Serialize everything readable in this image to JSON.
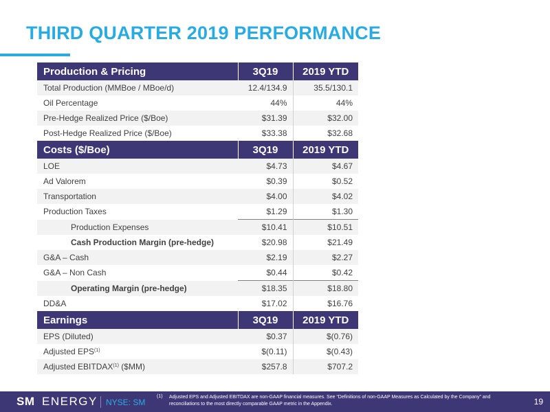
{
  "title": "THIRD QUARTER 2019 PERFORMANCE",
  "sections": {
    "production": {
      "header": "Production & Pricing",
      "col1": "3Q19",
      "col2": "2019 YTD",
      "rows": [
        {
          "label": "Total Production (MMBoe / MBoe/d)",
          "q": "12.4/134.9",
          "ytd": "35.5/130.1"
        },
        {
          "label": "Oil Percentage",
          "q": "44%",
          "ytd": "44%"
        },
        {
          "label": "Pre-Hedge Realized Price ($/Boe)",
          "q": "$31.39",
          "ytd": "$32.00"
        },
        {
          "label": "Post-Hedge Realized Price ($/Boe)",
          "q": "$33.38",
          "ytd": "$32.68"
        }
      ]
    },
    "costs": {
      "header": "Costs ($/Boe)",
      "col1": "3Q19",
      "col2": "2019 YTD",
      "rows": [
        {
          "label": "LOE",
          "q": "$4.73",
          "ytd": "$4.67"
        },
        {
          "label": "Ad Valorem",
          "q": "$0.39",
          "ytd": "$0.52"
        },
        {
          "label": "Transportation",
          "q": "$4.00",
          "ytd": "$4.02"
        },
        {
          "label": "Production Taxes",
          "q": "$1.29",
          "ytd": "$1.30"
        },
        {
          "label": "Production Expenses",
          "q": "$10.41",
          "ytd": "$10.51"
        },
        {
          "label": "Cash Production Margin (pre-hedge)",
          "q": "$20.98",
          "ytd": "$21.49"
        },
        {
          "label": "G&A – Cash",
          "q": "$2.19",
          "ytd": "$2.27"
        },
        {
          "label": "G&A – Non Cash",
          "q": "$0.44",
          "ytd": "$0.42"
        },
        {
          "label": "Operating Margin (pre-hedge)",
          "q": "$18.35",
          "ytd": "$18.80"
        },
        {
          "label": "DD&A",
          "q": "$17.02",
          "ytd": "$16.76"
        }
      ]
    },
    "earnings": {
      "header": "Earnings",
      "col1": "3Q19",
      "col2": "2019 YTD",
      "rows": [
        {
          "label": "EPS (Diluted)",
          "q": "$0.37",
          "ytd": "$(0.76)"
        },
        {
          "label": "Adjusted EPS",
          "sup": "(1)",
          "q": "$(0.11)",
          "ytd": "$(0.43)"
        },
        {
          "label": "Adjusted EBITDAX",
          "sup": "(1)",
          "label_suffix": " ($MM)",
          "q": "$257.8",
          "ytd": "$707.2"
        }
      ]
    }
  },
  "footer": {
    "logo_sm": "SM",
    "logo_energy": "ENERGY",
    "ticker": "NYSE: SM",
    "footnote_mark": "(1)",
    "footnote_text": "Adjusted EPS and Adjusted EBITDAX are non-GAAP financial measures. See “Definitions of non-GAAP Measures as Calculated by the Company” and reconciliations to the most directly comparable GAAP metric in the Appendix.",
    "page": "19"
  },
  "colors": {
    "accent": "#29abe2",
    "header_bg": "#3e3776",
    "stripe": "#f2f2f2"
  }
}
